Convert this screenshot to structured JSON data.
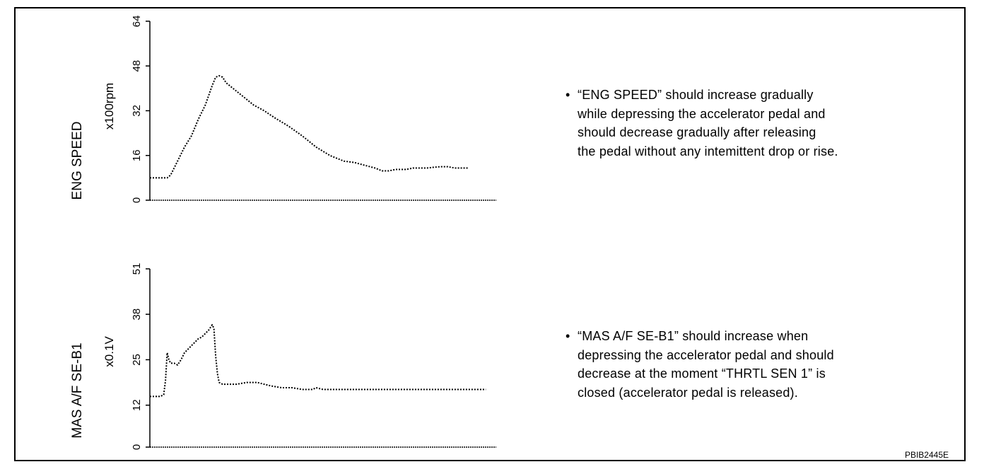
{
  "chart_data": [
    {
      "type": "line",
      "title": "",
      "ylabel": "ENG SPEED",
      "yunit": "x100rpm",
      "ylim": [
        0,
        64
      ],
      "yticks": [
        "0",
        "16",
        "32",
        "48",
        "64"
      ],
      "xlim": [
        0,
        100
      ],
      "grid": false,
      "line_style": "dotted",
      "series": [
        {
          "values_x": [
            0,
            5,
            6,
            8,
            10,
            12,
            14,
            16,
            18,
            19,
            20,
            21,
            22,
            24,
            26,
            28,
            30,
            33,
            36,
            40,
            44,
            48,
            52,
            56,
            59,
            62,
            65,
            67,
            69,
            71,
            74,
            76,
            78,
            80,
            82,
            84,
            86,
            88,
            90,
            92
          ],
          "values_y": [
            8,
            8,
            9,
            14,
            19,
            23,
            29,
            34,
            41,
            44,
            44.5,
            44,
            42,
            40,
            38,
            36,
            34,
            32,
            29.5,
            26.5,
            23,
            19,
            16,
            14,
            13.5,
            12.5,
            11.5,
            10.5,
            10.5,
            11,
            11,
            11.5,
            11.5,
            11.5,
            11.8,
            12,
            12,
            11.5,
            11.5,
            11.5
          ]
        }
      ]
    },
    {
      "type": "line",
      "title": "",
      "ylabel": "MAS A/F SE-B1",
      "yunit": "x0.1V",
      "ylim": [
        0,
        51
      ],
      "yticks": [
        "0",
        "12",
        "25",
        "38",
        "51"
      ],
      "xlim": [
        0,
        100
      ],
      "grid": false,
      "line_style": "dotted",
      "series": [
        {
          "values_x": [
            0,
            3,
            4,
            4.5,
            5,
            5.5,
            6,
            7,
            8,
            9,
            10,
            12,
            14,
            15,
            16,
            17,
            18,
            18.5,
            19,
            19.5,
            20,
            21,
            22,
            25,
            28,
            31,
            33,
            35,
            38,
            41,
            44,
            47,
            48,
            50,
            53,
            57,
            62,
            68,
            74,
            80,
            86,
            90,
            97
          ],
          "values_y": [
            14.5,
            14.5,
            15,
            19,
            27,
            25,
            24,
            24,
            23.5,
            25,
            27,
            29,
            31,
            31.5,
            32.5,
            33.5,
            35,
            34,
            26,
            21,
            18.5,
            18,
            18,
            18,
            18.5,
            18.5,
            18,
            17.5,
            17,
            17,
            16.5,
            16.5,
            17,
            16.5,
            16.5,
            16.5,
            16.5,
            16.5,
            16.5,
            16.5,
            16.5,
            16.5,
            16.5
          ]
        }
      ]
    }
  ],
  "notes": {
    "eng_speed": [
      "“ENG SPEED” should increase gradually",
      "while depressing the accelerator pedal and",
      "should decrease gradually after releasing",
      "the pedal without any intemittent drop or rise."
    ],
    "mas_af": [
      "“MAS A/F SE-B1” should increase when",
      "depressing the accelerator pedal and  should",
      "decrease at the moment “THRTL SEN 1” is",
      "closed (accelerator pedal is released)."
    ],
    "bullet": "•"
  },
  "figure_code": "PBIB2445E"
}
